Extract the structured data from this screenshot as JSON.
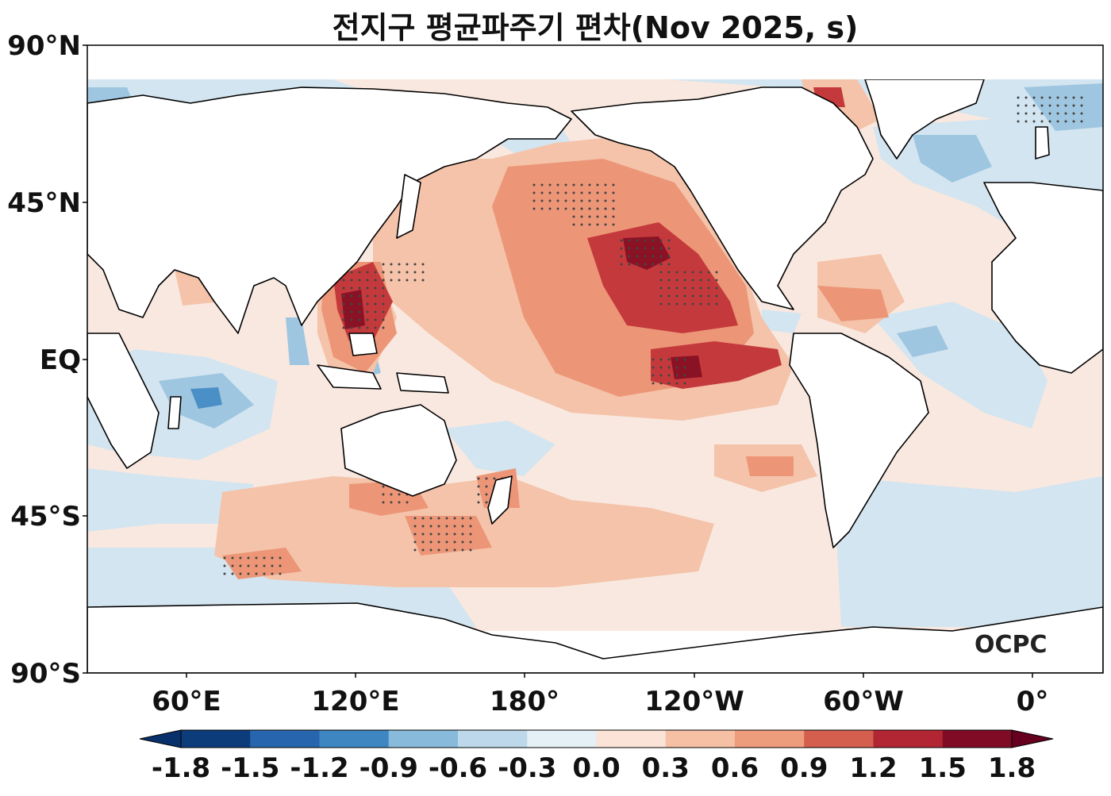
{
  "title": "전지구 평균파주기 편차(Nov 2025, s)",
  "watermark": "OCPC",
  "map": {
    "y_ticks": [
      "90°N",
      "45°N",
      "EQ",
      "45°S",
      "90°S"
    ],
    "x_ticks": [
      "60°E",
      "120°E",
      "180°",
      "120°W",
      "60°W",
      "0°"
    ],
    "lon_range": [
      25,
      385
    ],
    "lat_range": [
      -90,
      90
    ],
    "data_lat_range": [
      -78,
      80
    ]
  },
  "colorbar": {
    "labels": [
      "-1.8",
      "-1.5",
      "-1.2",
      "-0.9",
      "-0.6",
      "-0.3",
      "0.0",
      "0.3",
      "0.6",
      "0.9",
      "1.2",
      "1.5",
      "1.8"
    ],
    "colors": [
      "#0d3c7a",
      "#2766ae",
      "#3d86c1",
      "#88bbdb",
      "#bcd8ea",
      "#e4eff6",
      "#fbe3d7",
      "#f6c0a5",
      "#ee9d7c",
      "#d45f4f",
      "#b22532",
      "#7f0c24"
    ],
    "under_color": "#08306b",
    "over_color": "#67001f"
  }
}
